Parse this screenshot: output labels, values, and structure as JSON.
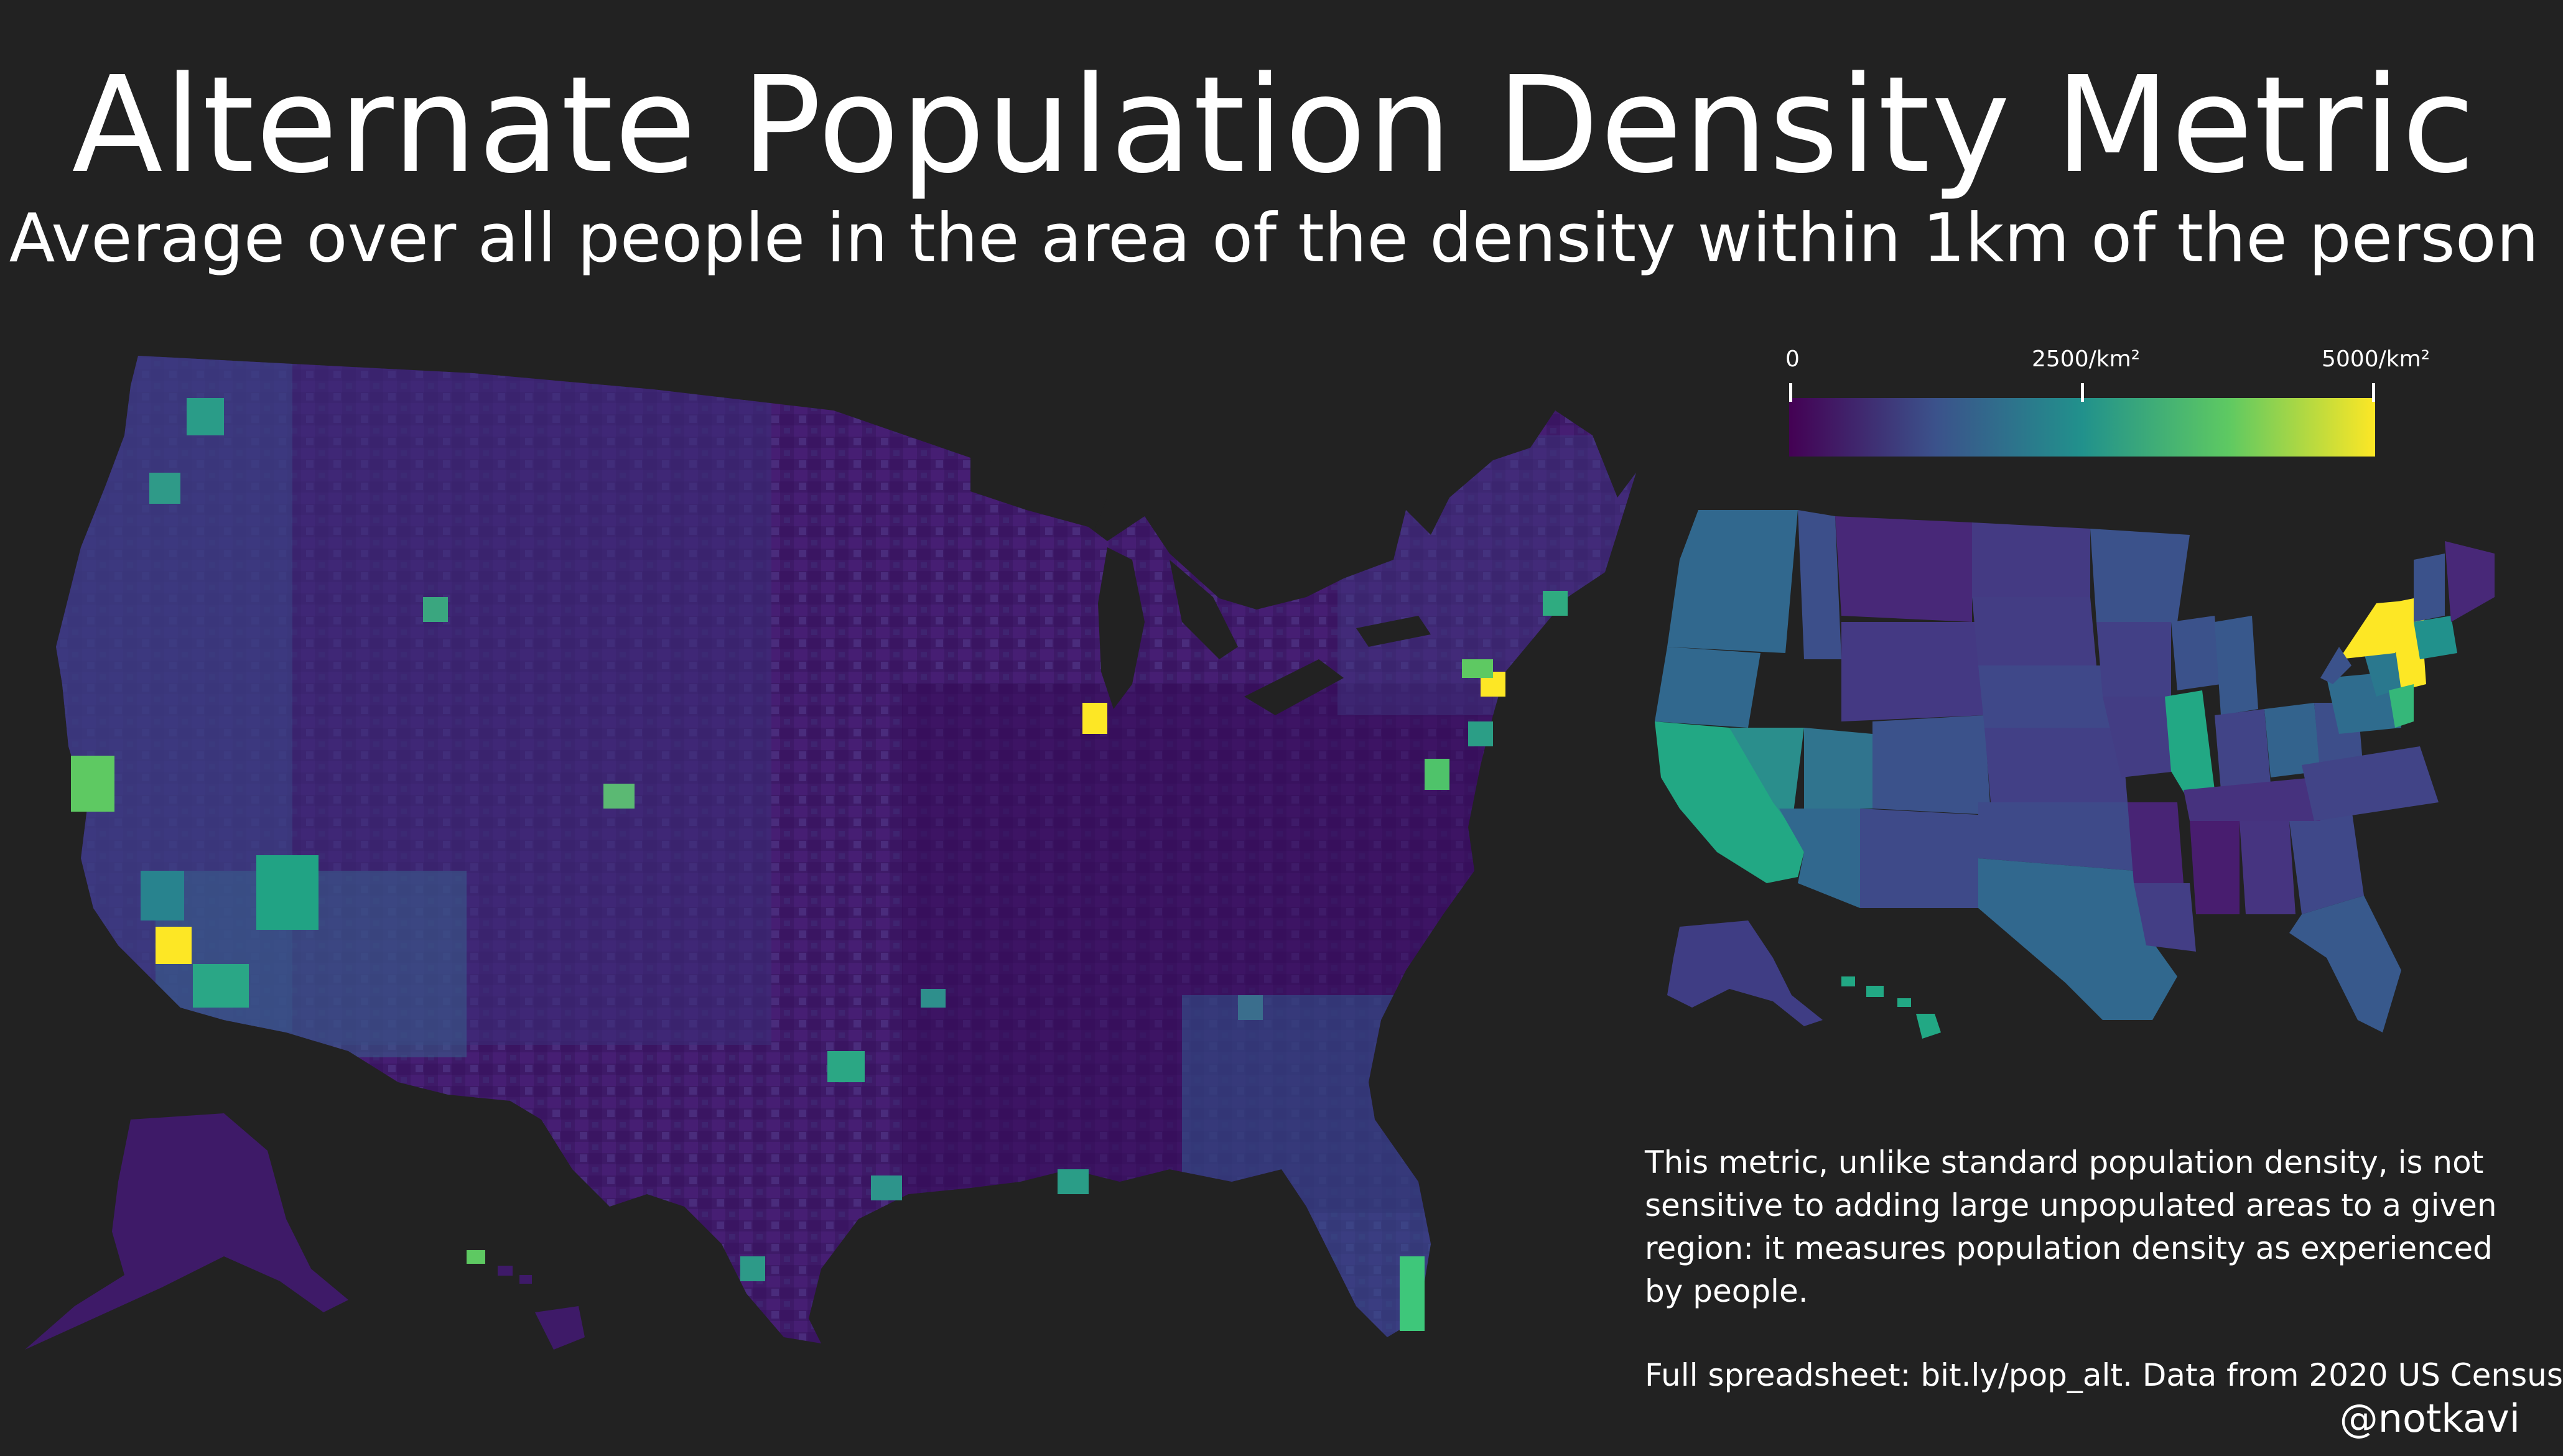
{
  "title": "Alternate Population Density Metric",
  "subtitle": "Average over all people in the area of the density within 1km of the person",
  "legend": {
    "colormap": [
      "#440154",
      "#3b528b",
      "#21918c",
      "#5ec962",
      "#fde725"
    ],
    "ticks": [
      {
        "value": 0,
        "label": "0"
      },
      {
        "value": 2500,
        "label": "2500/km²"
      },
      {
        "value": 5000,
        "label": "5000/km²"
      }
    ],
    "max": 5000
  },
  "note": "This metric, unlike standard population density, is not sensitive to adding large unpopulated areas to a given region: it measures population density as experienced by people.",
  "source": "Full spreadsheet: bit.ly/pop_alt. Data from 2020 US Census",
  "handle": "@notkavi",
  "maps": [
    {
      "name": "county-level-map",
      "level": "county"
    },
    {
      "name": "state-level-map",
      "level": "state"
    }
  ]
}
